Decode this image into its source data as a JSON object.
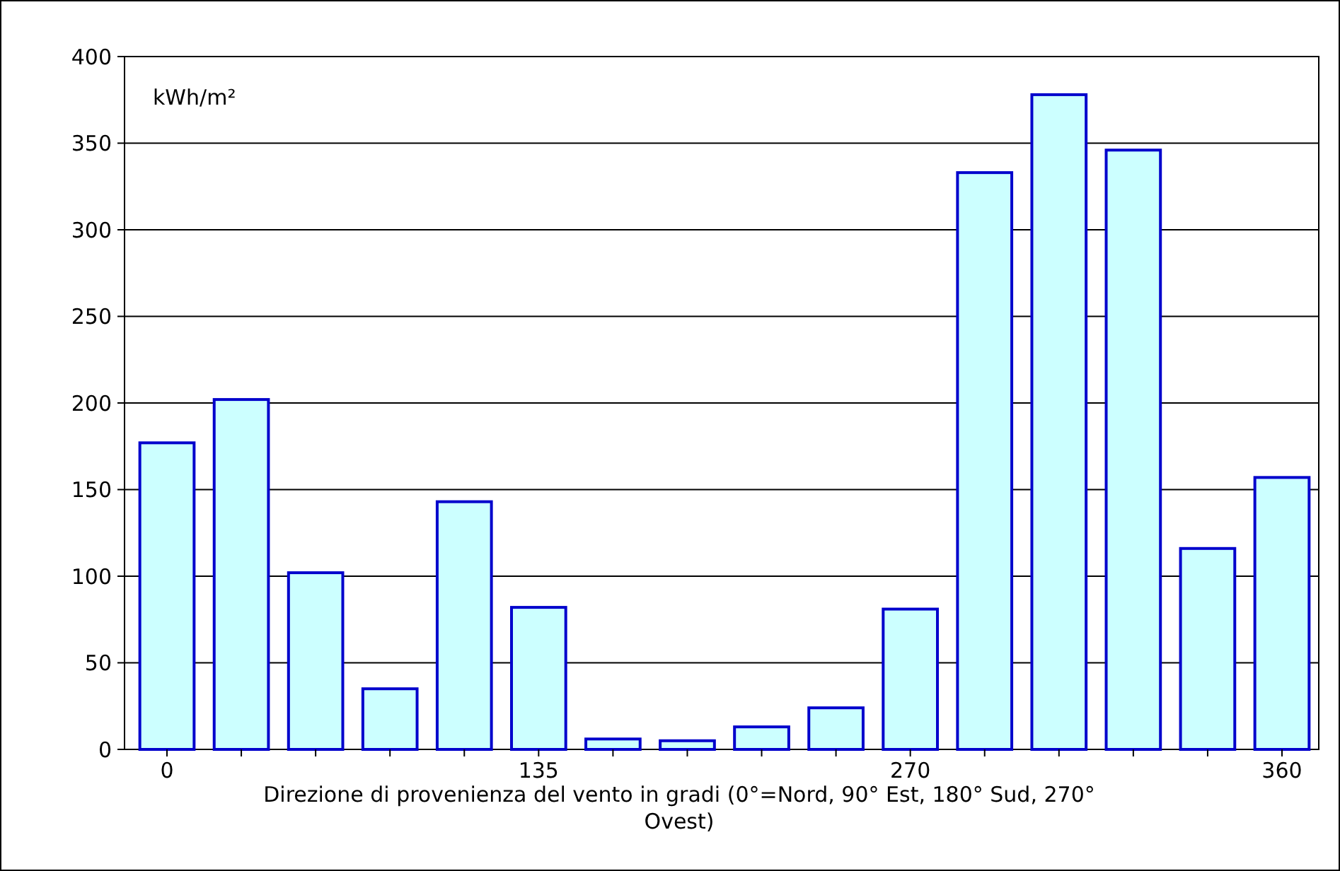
{
  "chart_data": {
    "type": "bar",
    "ylabel": "kWh/m²",
    "xlabel": "Direzione di provenienza del vento in gradi (0°=Nord, 90° Est, 180° Sud, 270° Ovest)",
    "categories": [
      "0",
      null,
      null,
      null,
      null,
      "135",
      null,
      null,
      null,
      null,
      "270",
      null,
      null,
      null,
      null,
      "360"
    ],
    "values": [
      177,
      202,
      102,
      35,
      143,
      82,
      6,
      5,
      13,
      24,
      81,
      333,
      378,
      346,
      116,
      157
    ],
    "color": "#ccffff",
    "ylim": [
      0,
      400
    ],
    "yticks": [
      0,
      50,
      100,
      150,
      200,
      250,
      300,
      350,
      400
    ],
    "grid": "y"
  }
}
